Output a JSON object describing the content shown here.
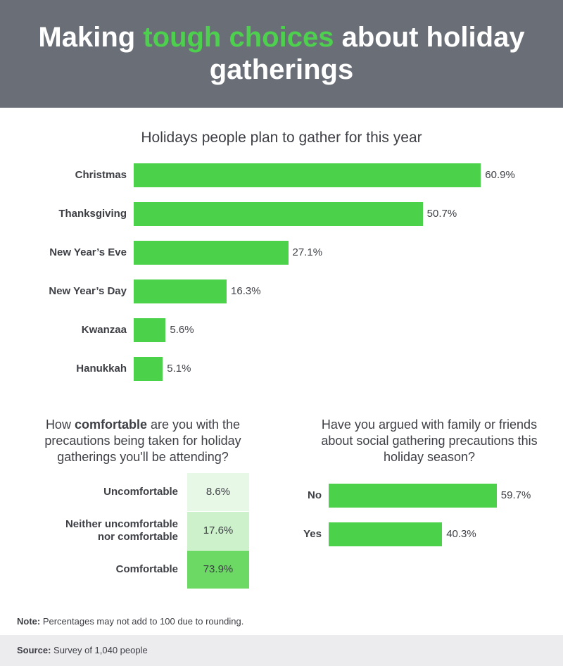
{
  "header": {
    "title_before": "Making ",
    "title_accent": "tough choices",
    "title_after": " about holiday gatherings"
  },
  "colors": {
    "header_bg": "#6a6e77",
    "accent": "#4dd04d",
    "bar": "#4cd14a",
    "comfort_light": "#e8f8e6",
    "comfort_mid": "#cdf1ca",
    "comfort_dark": "#6bd964",
    "footer_bg": "#ececef"
  },
  "chart_data": [
    {
      "type": "bar",
      "orientation": "horizontal",
      "title": "Holidays people plan to gather for this year",
      "categories": [
        "Christmas",
        "Thanksgiving",
        "New Year’s Eve",
        "New Year’s Day",
        "Kwanzaa",
        "Hanukkah"
      ],
      "values": [
        60.9,
        50.7,
        27.1,
        16.3,
        5.6,
        5.1
      ],
      "value_labels": [
        "60.9%",
        "50.7%",
        "27.1%",
        "16.3%",
        "5.6%",
        "5.1%"
      ],
      "unit": "%"
    },
    {
      "type": "table",
      "title_parts": [
        "How ",
        "comfortable",
        " are you with the precautions being taken for holiday gatherings you'll be attending?"
      ],
      "categories": [
        "Uncomfortable",
        "Neither uncomfortable nor comfortable",
        "Comfortable"
      ],
      "category_lines": [
        [
          "Uncomfortable"
        ],
        [
          "Neither uncomfortable",
          "nor comfortable"
        ],
        [
          "Comfortable"
        ]
      ],
      "values": [
        8.6,
        17.6,
        73.9
      ],
      "value_labels": [
        "8.6%",
        "17.6%",
        "73.9%"
      ],
      "unit": "%"
    },
    {
      "type": "bar",
      "orientation": "horizontal",
      "title": "Have you argued with family or friends about social gathering precautions this holiday season?",
      "categories": [
        "No",
        "Yes"
      ],
      "values": [
        59.7,
        40.3
      ],
      "value_labels": [
        "59.7%",
        "40.3%"
      ],
      "unit": "%"
    }
  ],
  "note": {
    "label": "Note:",
    "text": " Percentages may not add to 100 due to rounding."
  },
  "source": {
    "label": "Source:",
    "text": " Survey of 1,040 people"
  }
}
